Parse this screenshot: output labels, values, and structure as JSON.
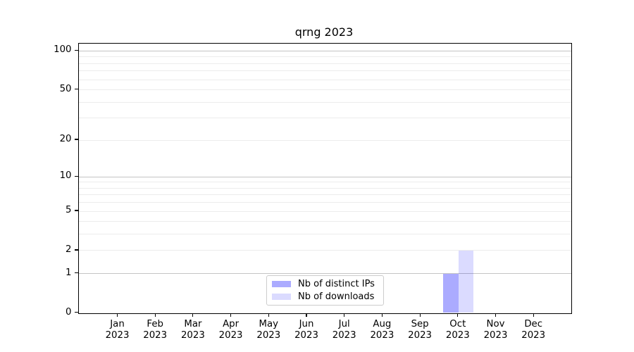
{
  "chart_data": {
    "type": "bar",
    "title": "qrng 2023",
    "y_scale": "log1p",
    "grid": "on",
    "legend_position": "lower center",
    "categories": [
      "Jan",
      "Feb",
      "Mar",
      "Apr",
      "May",
      "Jun",
      "Jul",
      "Aug",
      "Sep",
      "Oct",
      "Nov",
      "Dec"
    ],
    "category_year": "2023",
    "series": [
      {
        "name": "Nb of distinct IPs",
        "color": "rgba(0,0,255,0.33)",
        "values": [
          0,
          0,
          0,
          0,
          0,
          0,
          0,
          0,
          0,
          1,
          0,
          0
        ]
      },
      {
        "name": "Nb of downloads",
        "color": "rgba(0,0,255,0.14)",
        "values": [
          0,
          0,
          0,
          0,
          0,
          0,
          0,
          0,
          0,
          2,
          0,
          0
        ]
      }
    ],
    "y_ticks": [
      0,
      1,
      2,
      5,
      10,
      20,
      50,
      100
    ],
    "y_grid_major": [
      1,
      10,
      100
    ],
    "y_grid_minor": [
      2,
      3,
      4,
      5,
      6,
      7,
      8,
      9,
      20,
      30,
      40,
      50,
      60,
      70,
      80,
      90
    ],
    "ylim": [
      0,
      114
    ],
    "colors": {
      "grid_major": "#c4c4c4",
      "grid_minor": "#ececec",
      "axis": "#000000",
      "background": "#ffffff"
    }
  }
}
